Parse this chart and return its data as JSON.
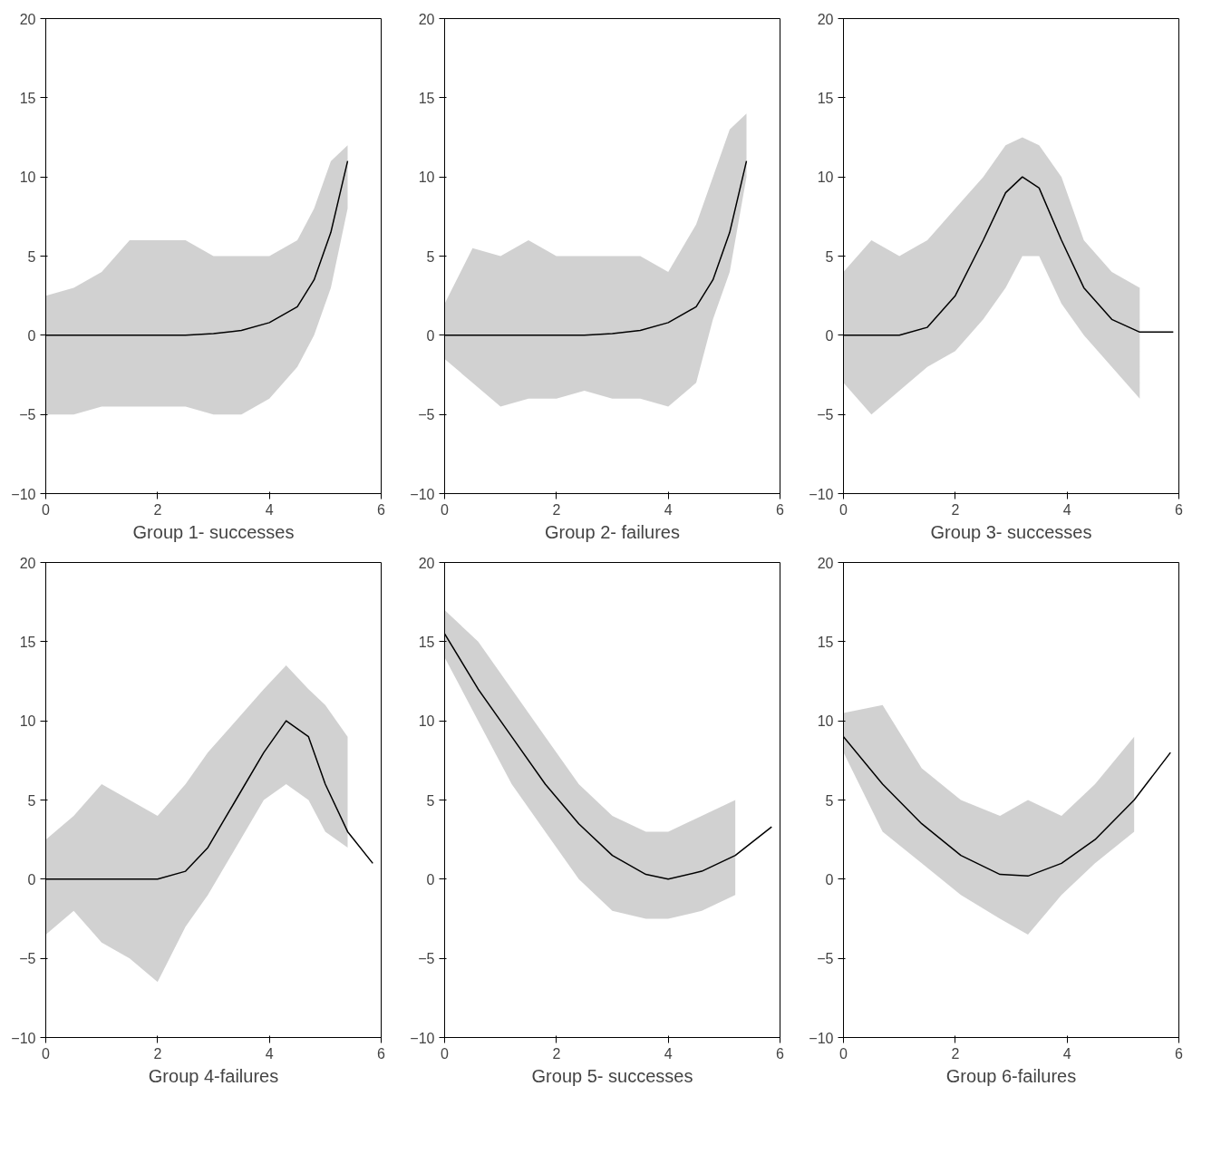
{
  "chart_data": [
    {
      "type": "line",
      "xlabel": "Group 1- successes",
      "xlim": [
        0,
        6
      ],
      "ylim": [
        -10,
        20
      ],
      "xticks": [
        0,
        2,
        4,
        6
      ],
      "yticks": [
        -10,
        -5,
        0,
        5,
        10,
        15,
        20
      ],
      "grid": false,
      "marker": "none",
      "line_style": "solid",
      "series": [
        {
          "color": "#000000",
          "x": [
            0,
            0.5,
            1,
            1.5,
            2,
            2.5,
            3,
            3.5,
            4,
            4.5,
            4.8,
            5.1,
            5.4
          ],
          "values": [
            0,
            0,
            0,
            0,
            0,
            0,
            0.1,
            0.3,
            0.8,
            1.8,
            3.5,
            6.5,
            11
          ],
          "lower": [
            -5,
            -5,
            -4.5,
            -4.5,
            -4.5,
            -4.5,
            -5,
            -5,
            -4,
            -2,
            0,
            3,
            8
          ],
          "upper": [
            2.5,
            3,
            4,
            6,
            6,
            6,
            5,
            5,
            5,
            6,
            8,
            11,
            12
          ]
        }
      ]
    },
    {
      "type": "line",
      "xlabel": "Group 2- failures",
      "xlim": [
        0,
        6
      ],
      "ylim": [
        -10,
        20
      ],
      "xticks": [
        0,
        2,
        4,
        6
      ],
      "yticks": [
        -10,
        -5,
        0,
        5,
        10,
        15,
        20
      ],
      "grid": false,
      "marker": "none",
      "line_style": "solid",
      "series": [
        {
          "color": "#000000",
          "x": [
            0,
            0.5,
            1,
            1.5,
            2,
            2.5,
            3,
            3.5,
            4,
            4.5,
            4.8,
            5.1,
            5.4
          ],
          "values": [
            0,
            0,
            0,
            0,
            0,
            0,
            0.1,
            0.3,
            0.8,
            1.8,
            3.5,
            6.5,
            11
          ],
          "lower": [
            -1.5,
            -3,
            -4.5,
            -4,
            -4,
            -3.5,
            -4,
            -4,
            -4.5,
            -3,
            1,
            4,
            10
          ],
          "upper": [
            2,
            5.5,
            5,
            6,
            5,
            5,
            5,
            5,
            4,
            7,
            10,
            13,
            14
          ]
        }
      ]
    },
    {
      "type": "line",
      "xlabel": "Group 3- successes",
      "xlim": [
        0,
        6
      ],
      "ylim": [
        -10,
        20
      ],
      "xticks": [
        0,
        2,
        4,
        6
      ],
      "yticks": [
        -10,
        -5,
        0,
        5,
        10,
        15,
        20
      ],
      "grid": false,
      "marker": "none",
      "line_style": "solid",
      "series": [
        {
          "color": "#000000",
          "x": [
            0,
            0.5,
            1,
            1.5,
            2,
            2.5,
            2.9,
            3.2,
            3.5,
            3.9,
            4.3,
            4.8,
            5.3,
            5.9
          ],
          "values": [
            0,
            0,
            0,
            0.5,
            2.5,
            6,
            9,
            10,
            9.3,
            6,
            3,
            1,
            0.2,
            0.2
          ],
          "lower": [
            -3,
            -5,
            -3.5,
            -2,
            -1,
            1,
            3,
            5,
            5,
            2,
            0,
            -2,
            -4,
            null
          ],
          "upper": [
            4,
            6,
            5,
            6,
            8,
            10,
            12,
            12.5,
            12,
            10,
            6,
            4,
            3,
            null
          ]
        }
      ]
    },
    {
      "type": "line",
      "xlabel": "Group 4-failures",
      "xlim": [
        0,
        6
      ],
      "ylim": [
        -10,
        20
      ],
      "xticks": [
        0,
        2,
        4,
        6
      ],
      "yticks": [
        -10,
        -5,
        0,
        5,
        10,
        15,
        20
      ],
      "grid": false,
      "marker": "none",
      "line_style": "solid",
      "series": [
        {
          "color": "#000000",
          "x": [
            0,
            0.5,
            1,
            1.5,
            2,
            2.5,
            2.9,
            3.4,
            3.9,
            4.3,
            4.7,
            5,
            5.4,
            5.85
          ],
          "values": [
            0,
            0,
            0,
            0,
            0,
            0.5,
            2,
            5,
            8,
            10,
            9,
            6,
            3,
            1
          ],
          "lower": [
            -3.5,
            -2,
            -4,
            -5,
            -6.5,
            -3,
            -1,
            2,
            5,
            6,
            5,
            3,
            2,
            null
          ],
          "upper": [
            2.5,
            4,
            6,
            5,
            4,
            6,
            8,
            10,
            12,
            13.5,
            12,
            11,
            9,
            null
          ]
        }
      ]
    },
    {
      "type": "line",
      "xlabel": "Group 5- successes",
      "xlim": [
        0,
        6
      ],
      "ylim": [
        -10,
        20
      ],
      "xticks": [
        0,
        2,
        4,
        6
      ],
      "yticks": [
        -10,
        -5,
        0,
        5,
        10,
        15,
        20
      ],
      "grid": false,
      "marker": "none",
      "line_style": "solid",
      "series": [
        {
          "color": "#000000",
          "x": [
            0,
            0.6,
            1.2,
            1.8,
            2.4,
            3,
            3.6,
            4,
            4.6,
            5.2,
            5.85
          ],
          "values": [
            15.5,
            12,
            9,
            6,
            3.5,
            1.5,
            0.3,
            0,
            0.5,
            1.5,
            3.3
          ],
          "lower": [
            14,
            10,
            6,
            3,
            0,
            -2,
            -2.5,
            -2.5,
            -2,
            -1,
            null
          ],
          "upper": [
            17,
            15,
            12,
            9,
            6,
            4,
            3,
            3,
            4,
            5,
            null
          ]
        }
      ]
    },
    {
      "type": "line",
      "xlabel": "Group 6-failures",
      "xlim": [
        0,
        6
      ],
      "ylim": [
        -10,
        20
      ],
      "xticks": [
        0,
        2,
        4,
        6
      ],
      "yticks": [
        -10,
        -5,
        0,
        5,
        10,
        15,
        20
      ],
      "grid": false,
      "marker": "none",
      "line_style": "solid",
      "series": [
        {
          "color": "#000000",
          "x": [
            0,
            0.7,
            1.4,
            2.1,
            2.8,
            3.3,
            3.9,
            4.5,
            5.2,
            5.85
          ],
          "values": [
            9,
            6,
            3.5,
            1.5,
            0.3,
            0.2,
            1,
            2.5,
            5,
            8
          ],
          "lower": [
            8,
            3,
            1,
            -1,
            -2.5,
            -3.5,
            -1,
            1,
            3,
            null
          ],
          "upper": [
            10.5,
            11,
            7,
            5,
            4,
            5,
            4,
            6,
            9,
            null
          ]
        }
      ]
    }
  ]
}
